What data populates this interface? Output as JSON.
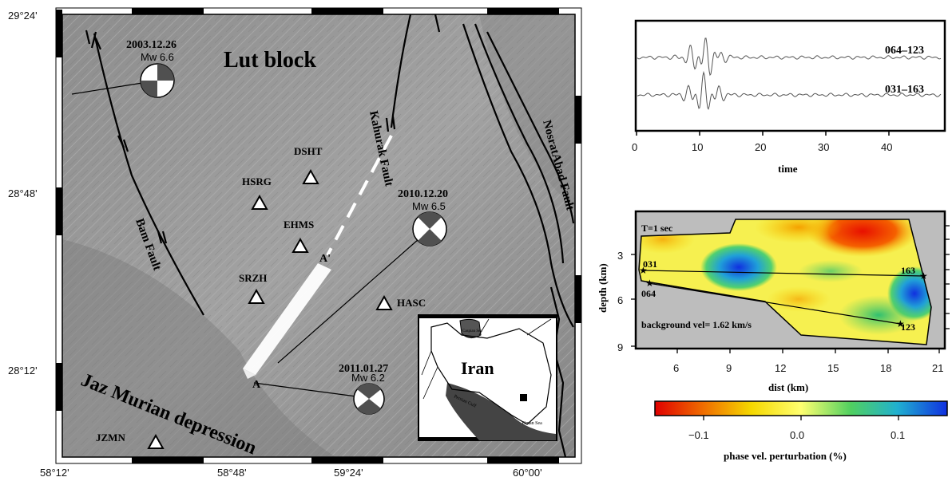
{
  "map": {
    "lat_ticks": [
      "29°24'",
      "28°48'",
      "28°12'"
    ],
    "lon_ticks": [
      "58°12'",
      "58°48'",
      "59°24'",
      "60°00'"
    ],
    "regions": {
      "lut_block": "Lut block",
      "jaz_murian": "Jaz Murian depression"
    },
    "faults": {
      "kahurak": "Kahurak Fault",
      "bam": "Bam Fault",
      "nosratabad": "NosratAbad Fault"
    },
    "stations": [
      {
        "code": "DSHT"
      },
      {
        "code": "HSRG"
      },
      {
        "code": "EHMS"
      },
      {
        "code": "SRZH"
      },
      {
        "code": "HASC"
      },
      {
        "code": "JZMN"
      }
    ],
    "events": [
      {
        "date": "2003.12.26",
        "mag": "Mw 6.6"
      },
      {
        "date": "2010.12.20",
        "mag": "Mw 6.5"
      },
      {
        "date": "2011.01.27",
        "mag": "Mw 6.2"
      }
    ],
    "profile_end_a": "A",
    "profile_end_a_prime": "A'",
    "inset": {
      "country": "Iran",
      "caspian": "Caspian Sea",
      "persian_gulf": "Persian Gulf",
      "oman_sea": "Oman Sea"
    }
  },
  "waveforms": {
    "traces": [
      {
        "label": "064–123"
      },
      {
        "label": "031–163"
      }
    ],
    "x_ticks": [
      "0",
      "10",
      "20",
      "30",
      "40"
    ],
    "xlabel": "time"
  },
  "section": {
    "period": "T=1 sec",
    "background": "background vel= 1.62 km/s",
    "x_ticks": [
      "6",
      "9",
      "12",
      "15",
      "18",
      "21"
    ],
    "y_ticks": [
      "3",
      "6",
      "9"
    ],
    "xlabel": "dist (km)",
    "ylabel": "depth (km)",
    "stations": [
      "031",
      "064",
      "163",
      "123"
    ]
  },
  "colorbar": {
    "ticks": [
      "−0.1",
      "0.0",
      "0.1"
    ],
    "label": "phase vel. perturbation (%)",
    "colors": [
      "#e00000",
      "#f07000",
      "#f5e000",
      "#ffff66",
      "#40d060",
      "#20b0d0",
      "#1030e0"
    ]
  }
}
